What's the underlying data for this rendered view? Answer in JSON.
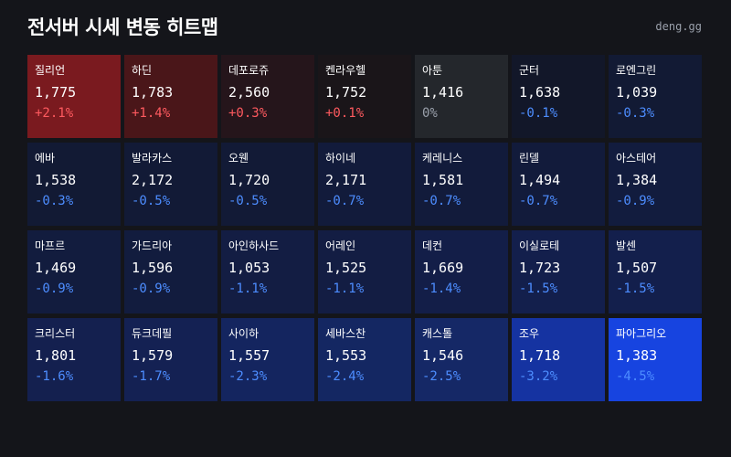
{
  "title": "전서버 시세 변동 히트맵",
  "site": "deng.gg",
  "colors": {
    "background": "#14151a",
    "positive_text": "#ff5a5f",
    "negative_text": "#4d8dff",
    "neutral_text": "#9aa0ab"
  },
  "cells": [
    {
      "name": "질리언",
      "price": "1,775",
      "change": "+2.1%",
      "bg": "#7a1a1f",
      "tone": "pos"
    },
    {
      "name": "하딘",
      "price": "1,783",
      "change": "+1.4%",
      "bg": "#4a1619",
      "tone": "pos"
    },
    {
      "name": "데포로쥬",
      "price": "2,560",
      "change": "+0.3%",
      "bg": "#25151b",
      "tone": "pos"
    },
    {
      "name": "켄라우헬",
      "price": "1,752",
      "change": "+0.1%",
      "bg": "#1a1519",
      "tone": "pos"
    },
    {
      "name": "아툰",
      "price": "1,416",
      "change": "0%",
      "bg": "#24272c",
      "tone": "neu"
    },
    {
      "name": "군터",
      "price": "1,638",
      "change": "-0.1%",
      "bg": "#121729",
      "tone": "neg"
    },
    {
      "name": "로엔그린",
      "price": "1,039",
      "change": "-0.3%",
      "bg": "#121a34",
      "tone": "neg"
    },
    {
      "name": "에바",
      "price": "1,538",
      "change": "-0.3%",
      "bg": "#121a34",
      "tone": "neg"
    },
    {
      "name": "발라카스",
      "price": "2,172",
      "change": "-0.5%",
      "bg": "#121a36",
      "tone": "neg"
    },
    {
      "name": "오웬",
      "price": "1,720",
      "change": "-0.5%",
      "bg": "#121a36",
      "tone": "neg"
    },
    {
      "name": "하이네",
      "price": "2,171",
      "change": "-0.7%",
      "bg": "#121b3b",
      "tone": "neg"
    },
    {
      "name": "케레니스",
      "price": "1,581",
      "change": "-0.7%",
      "bg": "#121b3b",
      "tone": "neg"
    },
    {
      "name": "린델",
      "price": "1,494",
      "change": "-0.7%",
      "bg": "#121b3b",
      "tone": "neg"
    },
    {
      "name": "아스테어",
      "price": "1,384",
      "change": "-0.9%",
      "bg": "#121c3e",
      "tone": "neg"
    },
    {
      "name": "마프르",
      "price": "1,469",
      "change": "-0.9%",
      "bg": "#121c3e",
      "tone": "neg"
    },
    {
      "name": "가드리아",
      "price": "1,596",
      "change": "-0.9%",
      "bg": "#121c3e",
      "tone": "neg"
    },
    {
      "name": "아인하사드",
      "price": "1,053",
      "change": "-1.1%",
      "bg": "#131d43",
      "tone": "neg"
    },
    {
      "name": "어레인",
      "price": "1,525",
      "change": "-1.1%",
      "bg": "#131d43",
      "tone": "neg"
    },
    {
      "name": "데컨",
      "price": "1,669",
      "change": "-1.4%",
      "bg": "#131e48",
      "tone": "neg"
    },
    {
      "name": "이실로테",
      "price": "1,723",
      "change": "-1.5%",
      "bg": "#131f4c",
      "tone": "neg"
    },
    {
      "name": "발센",
      "price": "1,507",
      "change": "-1.5%",
      "bg": "#131f4c",
      "tone": "neg"
    },
    {
      "name": "크리스터",
      "price": "1,801",
      "change": "-1.6%",
      "bg": "#14204f",
      "tone": "neg"
    },
    {
      "name": "듀크데필",
      "price": "1,579",
      "change": "-1.7%",
      "bg": "#142153",
      "tone": "neg"
    },
    {
      "name": "사이하",
      "price": "1,557",
      "change": "-2.3%",
      "bg": "#14255f",
      "tone": "neg"
    },
    {
      "name": "세바스찬",
      "price": "1,553",
      "change": "-2.4%",
      "bg": "#142762",
      "tone": "neg"
    },
    {
      "name": "캐스톨",
      "price": "1,546",
      "change": "-2.5%",
      "bg": "#152866",
      "tone": "neg"
    },
    {
      "name": "조우",
      "price": "1,718",
      "change": "-3.2%",
      "bg": "#1533a1",
      "tone": "neg"
    },
    {
      "name": "파아그리오",
      "price": "1,383",
      "change": "-4.5%",
      "bg": "#1744e0",
      "tone": "neg"
    }
  ]
}
